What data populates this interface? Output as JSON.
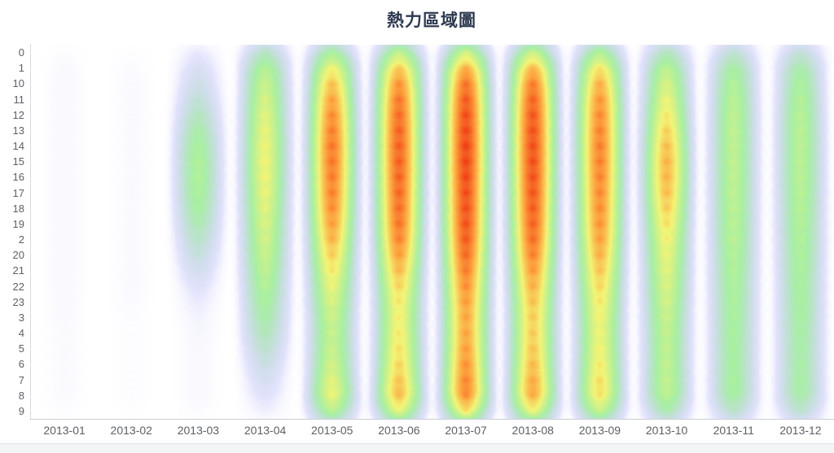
{
  "chart_data": {
    "type": "heatmap",
    "title": "熱力區域圖",
    "xlabel": "",
    "ylabel": "",
    "x_categories": [
      "2013-01",
      "2013-02",
      "2013-03",
      "2013-04",
      "2013-05",
      "2013-06",
      "2013-07",
      "2013-08",
      "2013-09",
      "2013-10",
      "2013-11",
      "2013-12"
    ],
    "y_categories": [
      "0",
      "1",
      "10",
      "11",
      "12",
      "13",
      "14",
      "15",
      "16",
      "17",
      "18",
      "19",
      "2",
      "20",
      "21",
      "22",
      "23",
      "3",
      "4",
      "5",
      "6",
      "7",
      "8",
      "9"
    ],
    "value_range": [
      0,
      100
    ],
    "values": [
      [
        5,
        4,
        14,
        42,
        52,
        62,
        66,
        64,
        56,
        44,
        38,
        36
      ],
      [
        6,
        5,
        18,
        48,
        64,
        74,
        80,
        78,
        68,
        50,
        42,
        40
      ],
      [
        6,
        5,
        22,
        52,
        74,
        84,
        90,
        88,
        78,
        56,
        46,
        44
      ],
      [
        6,
        5,
        28,
        56,
        80,
        88,
        94,
        92,
        82,
        60,
        48,
        46
      ],
      [
        6,
        5,
        34,
        58,
        84,
        90,
        96,
        94,
        84,
        64,
        50,
        48
      ],
      [
        6,
        5,
        40,
        60,
        86,
        92,
        97,
        95,
        85,
        70,
        50,
        48
      ],
      [
        6,
        5,
        44,
        62,
        88,
        92,
        98,
        96,
        86,
        74,
        50,
        48
      ],
      [
        6,
        5,
        46,
        62,
        88,
        92,
        98,
        96,
        86,
        76,
        50,
        48
      ],
      [
        6,
        5,
        46,
        62,
        86,
        92,
        97,
        95,
        85,
        76,
        50,
        48
      ],
      [
        6,
        5,
        44,
        60,
        86,
        90,
        96,
        94,
        84,
        74,
        50,
        48
      ],
      [
        6,
        5,
        42,
        58,
        84,
        90,
        96,
        93,
        83,
        70,
        48,
        46
      ],
      [
        6,
        5,
        38,
        56,
        80,
        88,
        95,
        92,
        82,
        66,
        48,
        46
      ],
      [
        6,
        5,
        32,
        54,
        76,
        86,
        94,
        90,
        80,
        62,
        48,
        46
      ],
      [
        6,
        5,
        26,
        52,
        70,
        80,
        90,
        86,
        76,
        60,
        46,
        44
      ],
      [
        6,
        5,
        20,
        50,
        64,
        74,
        86,
        80,
        72,
        58,
        46,
        44
      ],
      [
        6,
        5,
        14,
        46,
        60,
        68,
        82,
        76,
        68,
        56,
        44,
        42
      ],
      [
        6,
        5,
        10,
        42,
        56,
        64,
        80,
        72,
        64,
        54,
        44,
        42
      ],
      [
        5,
        4,
        8,
        40,
        52,
        62,
        78,
        70,
        62,
        52,
        44,
        42
      ],
      [
        5,
        4,
        7,
        36,
        50,
        64,
        78,
        70,
        60,
        50,
        42,
        40
      ],
      [
        5,
        4,
        6,
        30,
        52,
        66,
        80,
        72,
        62,
        50,
        42,
        40
      ],
      [
        5,
        4,
        6,
        24,
        54,
        68,
        82,
        74,
        64,
        50,
        42,
        40
      ],
      [
        5,
        4,
        6,
        18,
        56,
        70,
        84,
        76,
        66,
        50,
        42,
        40
      ],
      [
        5,
        4,
        6,
        14,
        66,
        80,
        88,
        82,
        70,
        52,
        44,
        42
      ],
      [
        5,
        4,
        6,
        12,
        64,
        78,
        86,
        80,
        68,
        50,
        42,
        40
      ]
    ],
    "palette": {
      "stops": [
        {
          "t": 0.0,
          "color": "#ffffff"
        },
        {
          "t": 0.15,
          "color": "#6a6af0"
        },
        {
          "t": 0.42,
          "color": "#58e052"
        },
        {
          "t": 0.58,
          "color": "#eef042"
        },
        {
          "t": 0.68,
          "color": "#fc961e"
        },
        {
          "t": 0.78,
          "color": "#f03c10"
        },
        {
          "t": 1.0,
          "color": "#c62a0c"
        }
      ]
    },
    "layout": {
      "grid": false,
      "legend": "none",
      "blurred": true
    }
  },
  "style": {
    "title_color": "#2e3a50",
    "axis_label_color": "#5c6066",
    "footer_strip_color": "#f3f4f6",
    "footer_strip_border": "#e2e4ea"
  }
}
